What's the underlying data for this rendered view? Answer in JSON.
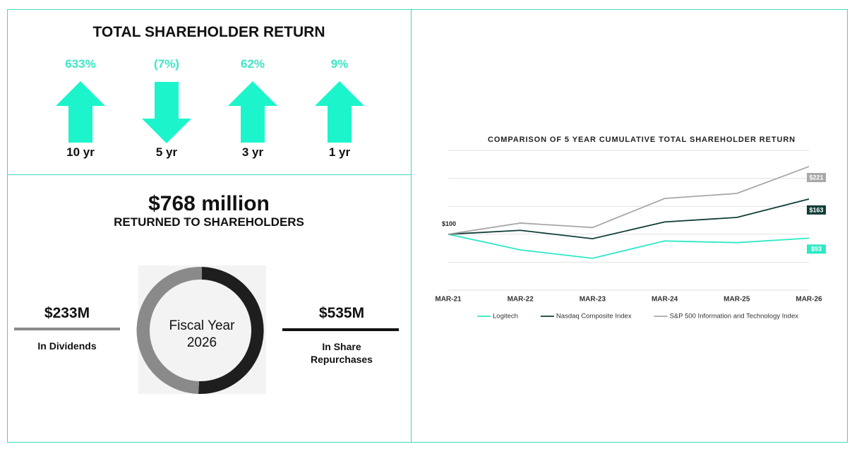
{
  "shareholder_return": {
    "title": "TOTAL SHAREHOLDER RETURN",
    "items": [
      {
        "return": "633%",
        "period": "10 yr",
        "direction": "up"
      },
      {
        "return": "(7%)",
        "period": "5 yr",
        "direction": "down"
      },
      {
        "return": "62%",
        "period": "3 yr",
        "direction": "up"
      },
      {
        "return": "9%",
        "period": "1 yr",
        "direction": "up"
      }
    ]
  },
  "returned": {
    "amount": "$768 million",
    "subtitle": "RETURNED TO SHAREHOLDERS",
    "center_label": "Fiscal Year 2026",
    "dividends": {
      "amount": "$233M",
      "label": "In Dividends"
    },
    "repurchases": {
      "amount": "$535M",
      "label": "In Share Repurchases"
    }
  },
  "chart_data": {
    "type": "line",
    "title": "COMPARISON OF 5 YEAR CUMULATIVE TOTAL SHAREHOLDER RETURN",
    "categories": [
      "MAR-21",
      "MAR-22",
      "MAR-23",
      "MAR-24",
      "MAR-25",
      "MAR-26"
    ],
    "series": [
      {
        "name": "Logitech",
        "color": "#2ee8c6",
        "values": [
          100,
          72,
          57,
          88,
          85,
          93
        ],
        "value_labels": [
          "$100",
          null,
          null,
          null,
          null,
          "$93"
        ]
      },
      {
        "name": "Nasdaq Composite Index",
        "color": "#0f3d38",
        "values": [
          100,
          107,
          92,
          122,
          130,
          163
        ],
        "value_labels": [
          null,
          null,
          null,
          null,
          null,
          "$163"
        ]
      },
      {
        "name": "S&P 500 Information and Technology Index",
        "color": "#a8a8a8",
        "values": [
          100,
          120,
          112,
          164,
          173,
          221
        ],
        "value_labels": [
          null,
          null,
          null,
          null,
          null,
          "$221"
        ]
      }
    ],
    "ylim": [
      0,
      250
    ],
    "yticks": [
      0,
      50,
      100,
      150,
      200,
      250
    ],
    "grid": true,
    "legend": "bottom"
  }
}
